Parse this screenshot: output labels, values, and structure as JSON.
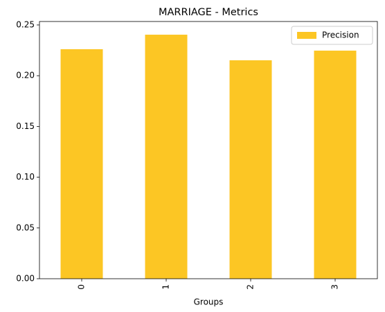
{
  "chart_data": {
    "type": "bar",
    "title": "MARRIAGE - Metrics",
    "x_label": "Groups",
    "categories": [
      "0",
      "1",
      "2",
      "3"
    ],
    "series": [
      {
        "name": "Precision",
        "color": "#fcc624",
        "values": [
          0.2261,
          0.2404,
          0.2152,
          0.2247
        ]
      }
    ],
    "ylim": [
      0,
      0.2534
    ],
    "yticks": [
      {
        "value": 0,
        "label": "0.00"
      },
      {
        "value": 0.05,
        "label": "0.05"
      },
      {
        "value": 0.1,
        "label": "0.10"
      },
      {
        "value": 0.15,
        "label": "0.15"
      },
      {
        "value": 0.2,
        "label": "0.20"
      },
      {
        "value": 0.25,
        "label": "0.25"
      }
    ],
    "legend": "upper right",
    "grid": false
  }
}
